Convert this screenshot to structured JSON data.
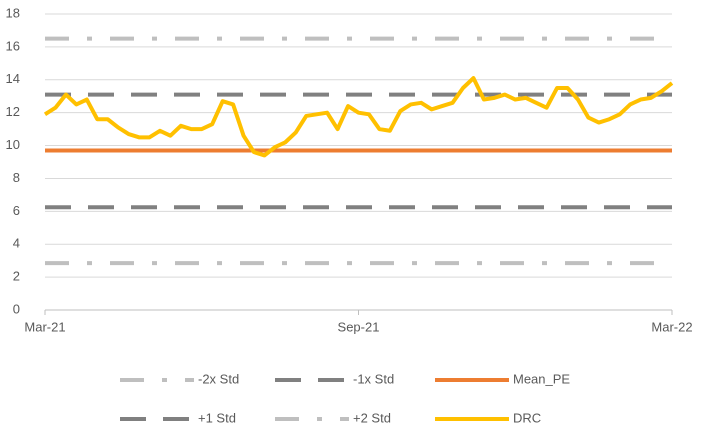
{
  "chart_data": {
    "type": "line",
    "categories": [
      "Mar-21",
      null,
      null,
      null,
      null,
      null,
      null,
      null,
      null,
      null,
      null,
      null,
      null,
      null,
      null,
      null,
      null,
      null,
      null,
      null,
      null,
      null,
      null,
      null,
      null,
      null,
      null,
      null,
      null,
      null,
      "Sep-21",
      null,
      null,
      null,
      null,
      null,
      null,
      null,
      null,
      null,
      null,
      null,
      null,
      null,
      null,
      null,
      null,
      null,
      null,
      null,
      null,
      null,
      null,
      null,
      null,
      null,
      null,
      null,
      null,
      null,
      "Mar-22"
    ],
    "series": [
      {
        "name": "-2x Std",
        "color": "#bfbfbf",
        "line_style": "dash-dot",
        "values": [
          2.85,
          2.85,
          2.85,
          2.85,
          2.85,
          2.85,
          2.85,
          2.85,
          2.85,
          2.85,
          2.85,
          2.85,
          2.85,
          2.85,
          2.85,
          2.85,
          2.85,
          2.85,
          2.85,
          2.85,
          2.85,
          2.85,
          2.85,
          2.85,
          2.85,
          2.85,
          2.85,
          2.85,
          2.85,
          2.85,
          2.85,
          2.85,
          2.85,
          2.85,
          2.85,
          2.85,
          2.85,
          2.85,
          2.85,
          2.85,
          2.85,
          2.85,
          2.85,
          2.85,
          2.85,
          2.85,
          2.85,
          2.85,
          2.85,
          2.85,
          2.85,
          2.85,
          2.85,
          2.85,
          2.85,
          2.85,
          2.85,
          2.85,
          2.85,
          2.85,
          2.85
        ]
      },
      {
        "name": "-1x Std",
        "color": "#808080",
        "line_style": "dash",
        "values": [
          6.25,
          6.25,
          6.25,
          6.25,
          6.25,
          6.25,
          6.25,
          6.25,
          6.25,
          6.25,
          6.25,
          6.25,
          6.25,
          6.25,
          6.25,
          6.25,
          6.25,
          6.25,
          6.25,
          6.25,
          6.25,
          6.25,
          6.25,
          6.25,
          6.25,
          6.25,
          6.25,
          6.25,
          6.25,
          6.25,
          6.25,
          6.25,
          6.25,
          6.25,
          6.25,
          6.25,
          6.25,
          6.25,
          6.25,
          6.25,
          6.25,
          6.25,
          6.25,
          6.25,
          6.25,
          6.25,
          6.25,
          6.25,
          6.25,
          6.25,
          6.25,
          6.25,
          6.25,
          6.25,
          6.25,
          6.25,
          6.25,
          6.25,
          6.25,
          6.25,
          6.25
        ]
      },
      {
        "name": "Mean_PE",
        "color": "#ed7d31",
        "line_style": "solid",
        "values": [
          9.7,
          9.7,
          9.7,
          9.7,
          9.7,
          9.7,
          9.7,
          9.7,
          9.7,
          9.7,
          9.7,
          9.7,
          9.7,
          9.7,
          9.7,
          9.7,
          9.7,
          9.7,
          9.7,
          9.7,
          9.7,
          9.7,
          9.7,
          9.7,
          9.7,
          9.7,
          9.7,
          9.7,
          9.7,
          9.7,
          9.7,
          9.7,
          9.7,
          9.7,
          9.7,
          9.7,
          9.7,
          9.7,
          9.7,
          9.7,
          9.7,
          9.7,
          9.7,
          9.7,
          9.7,
          9.7,
          9.7,
          9.7,
          9.7,
          9.7,
          9.7,
          9.7,
          9.7,
          9.7,
          9.7,
          9.7,
          9.7,
          9.7,
          9.7,
          9.7,
          9.7
        ]
      },
      {
        "name": "+1 Std",
        "color": "#808080",
        "line_style": "dash",
        "values": [
          13.1,
          13.1,
          13.1,
          13.1,
          13.1,
          13.1,
          13.1,
          13.1,
          13.1,
          13.1,
          13.1,
          13.1,
          13.1,
          13.1,
          13.1,
          13.1,
          13.1,
          13.1,
          13.1,
          13.1,
          13.1,
          13.1,
          13.1,
          13.1,
          13.1,
          13.1,
          13.1,
          13.1,
          13.1,
          13.1,
          13.1,
          13.1,
          13.1,
          13.1,
          13.1,
          13.1,
          13.1,
          13.1,
          13.1,
          13.1,
          13.1,
          13.1,
          13.1,
          13.1,
          13.1,
          13.1,
          13.1,
          13.1,
          13.1,
          13.1,
          13.1,
          13.1,
          13.1,
          13.1,
          13.1,
          13.1,
          13.1,
          13.1,
          13.1,
          13.1,
          13.1
        ]
      },
      {
        "name": "+2 Std",
        "color": "#bfbfbf",
        "line_style": "dash-dot",
        "values": [
          16.5,
          16.5,
          16.5,
          16.5,
          16.5,
          16.5,
          16.5,
          16.5,
          16.5,
          16.5,
          16.5,
          16.5,
          16.5,
          16.5,
          16.5,
          16.5,
          16.5,
          16.5,
          16.5,
          16.5,
          16.5,
          16.5,
          16.5,
          16.5,
          16.5,
          16.5,
          16.5,
          16.5,
          16.5,
          16.5,
          16.5,
          16.5,
          16.5,
          16.5,
          16.5,
          16.5,
          16.5,
          16.5,
          16.5,
          16.5,
          16.5,
          16.5,
          16.5,
          16.5,
          16.5,
          16.5,
          16.5,
          16.5,
          16.5,
          16.5,
          16.5,
          16.5,
          16.5,
          16.5,
          16.5,
          16.5,
          16.5,
          16.5,
          16.5,
          16.5,
          16.5
        ]
      },
      {
        "name": "DRC",
        "color": "#ffc000",
        "line_style": "solid",
        "values": [
          11.9,
          12.3,
          13.1,
          12.5,
          12.8,
          11.6,
          11.6,
          11.1,
          10.7,
          10.5,
          10.5,
          10.9,
          10.6,
          11.2,
          11.0,
          11.0,
          11.3,
          12.7,
          12.5,
          10.6,
          9.6,
          9.4,
          9.9,
          10.2,
          10.8,
          11.8,
          11.9,
          12.0,
          11.0,
          12.4,
          12.0,
          11.9,
          11.0,
          10.9,
          12.1,
          12.5,
          12.6,
          12.2,
          12.4,
          12.6,
          13.5,
          14.1,
          12.8,
          12.9,
          13.1,
          12.8,
          12.9,
          12.6,
          12.3,
          13.5,
          13.5,
          12.8,
          11.7,
          11.4,
          11.6,
          11.9,
          12.5,
          12.8,
          12.9,
          13.3,
          13.8
        ]
      }
    ],
    "ylim": [
      0,
      18
    ],
    "yticks": [
      0,
      2,
      4,
      6,
      8,
      10,
      12,
      14,
      16,
      18
    ],
    "grid": true,
    "legend": "bottom"
  }
}
